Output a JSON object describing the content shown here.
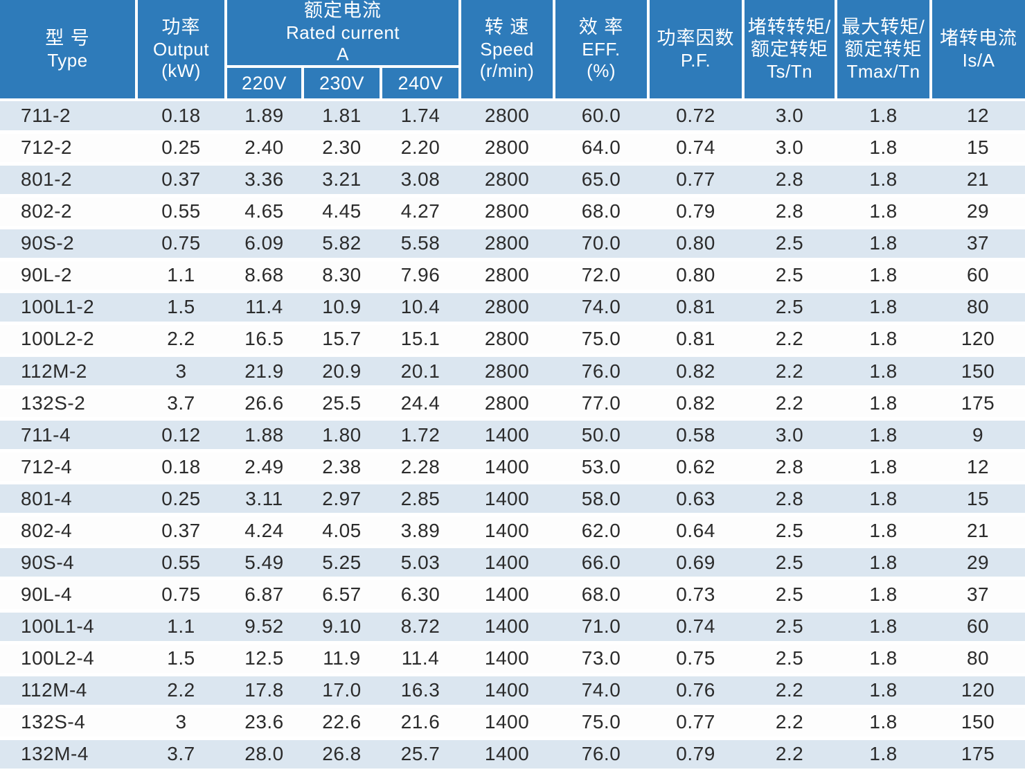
{
  "colors": {
    "header_bg": "#2e7bba",
    "row_stripe": "#dbe6f0",
    "row_plain": "#fdfdfd",
    "header_text": "#ffffff",
    "body_text": "#2b2b2b"
  },
  "table": {
    "header": {
      "type": {
        "zh": "型 号",
        "en": "Type"
      },
      "output": {
        "zh": "功率",
        "en": "Output",
        "unit": "(kW)"
      },
      "rated": {
        "zh": "额定电流",
        "en": "Rated current",
        "unit": "A"
      },
      "voltages": [
        "220V",
        "230V",
        "240V"
      ],
      "speed": {
        "zh": "转 速",
        "en": "Speed",
        "unit": "(r/min)"
      },
      "eff": {
        "zh": "效 率",
        "en": "EFF.",
        "unit": "(%)"
      },
      "pf": {
        "zh": "功率因数",
        "en": "P.F."
      },
      "ts": {
        "zh": "堵转转矩/",
        "zh2": "额定转矩",
        "en": "Ts/Tn"
      },
      "tmax": {
        "zh": "最大转矩/",
        "zh2": "额定转矩",
        "en": "Tmax/Tn"
      },
      "isa": {
        "zh": "堵转电流",
        "en": "Is/A"
      }
    },
    "rows": [
      [
        "711-2",
        "0.18",
        "1.89",
        "1.81",
        "1.74",
        "2800",
        "60.0",
        "0.72",
        "3.0",
        "1.8",
        "12"
      ],
      [
        "712-2",
        "0.25",
        "2.40",
        "2.30",
        "2.20",
        "2800",
        "64.0",
        "0.74",
        "3.0",
        "1.8",
        "15"
      ],
      [
        "801-2",
        "0.37",
        "3.36",
        "3.21",
        "3.08",
        "2800",
        "65.0",
        "0.77",
        "2.8",
        "1.8",
        "21"
      ],
      [
        "802-2",
        "0.55",
        "4.65",
        "4.45",
        "4.27",
        "2800",
        "68.0",
        "0.79",
        "2.8",
        "1.8",
        "29"
      ],
      [
        "90S-2",
        "0.75",
        "6.09",
        "5.82",
        "5.58",
        "2800",
        "70.0",
        "0.80",
        "2.5",
        "1.8",
        "37"
      ],
      [
        "90L-2",
        "1.1",
        "8.68",
        "8.30",
        "7.96",
        "2800",
        "72.0",
        "0.80",
        "2.5",
        "1.8",
        "60"
      ],
      [
        "100L1-2",
        "1.5",
        "11.4",
        "10.9",
        "10.4",
        "2800",
        "74.0",
        "0.81",
        "2.5",
        "1.8",
        "80"
      ],
      [
        "100L2-2",
        "2.2",
        "16.5",
        "15.7",
        "15.1",
        "2800",
        "75.0",
        "0.81",
        "2.2",
        "1.8",
        "120"
      ],
      [
        "112M-2",
        "3",
        "21.9",
        "20.9",
        "20.1",
        "2800",
        "76.0",
        "0.82",
        "2.2",
        "1.8",
        "150"
      ],
      [
        "132S-2",
        "3.7",
        "26.6",
        "25.5",
        "24.4",
        "2800",
        "77.0",
        "0.82",
        "2.2",
        "1.8",
        "175"
      ],
      [
        "711-4",
        "0.12",
        "1.88",
        "1.80",
        "1.72",
        "1400",
        "50.0",
        "0.58",
        "3.0",
        "1.8",
        "9"
      ],
      [
        "712-4",
        "0.18",
        "2.49",
        "2.38",
        "2.28",
        "1400",
        "53.0",
        "0.62",
        "2.8",
        "1.8",
        "12"
      ],
      [
        "801-4",
        "0.25",
        "3.11",
        "2.97",
        "2.85",
        "1400",
        "58.0",
        "0.63",
        "2.8",
        "1.8",
        "15"
      ],
      [
        "802-4",
        "0.37",
        "4.24",
        "4.05",
        "3.89",
        "1400",
        "62.0",
        "0.64",
        "2.5",
        "1.8",
        "21"
      ],
      [
        "90S-4",
        "0.55",
        "5.49",
        "5.25",
        "5.03",
        "1400",
        "66.0",
        "0.69",
        "2.5",
        "1.8",
        "29"
      ],
      [
        "90L-4",
        "0.75",
        "6.87",
        "6.57",
        "6.30",
        "1400",
        "68.0",
        "0.73",
        "2.5",
        "1.8",
        "37"
      ],
      [
        "100L1-4",
        "1.1",
        "9.52",
        "9.10",
        "8.72",
        "1400",
        "71.0",
        "0.74",
        "2.5",
        "1.8",
        "60"
      ],
      [
        "100L2-4",
        "1.5",
        "12.5",
        "11.9",
        "11.4",
        "1400",
        "73.0",
        "0.75",
        "2.5",
        "1.8",
        "80"
      ],
      [
        "112M-4",
        "2.2",
        "17.8",
        "17.0",
        "16.3",
        "1400",
        "74.0",
        "0.76",
        "2.2",
        "1.8",
        "120"
      ],
      [
        "132S-4",
        "3",
        "23.6",
        "22.6",
        "21.6",
        "1400",
        "75.0",
        "0.77",
        "2.2",
        "1.8",
        "150"
      ],
      [
        "132M-4",
        "3.7",
        "28.0",
        "26.8",
        "25.7",
        "1400",
        "76.0",
        "0.79",
        "2.2",
        "1.8",
        "175"
      ]
    ]
  }
}
